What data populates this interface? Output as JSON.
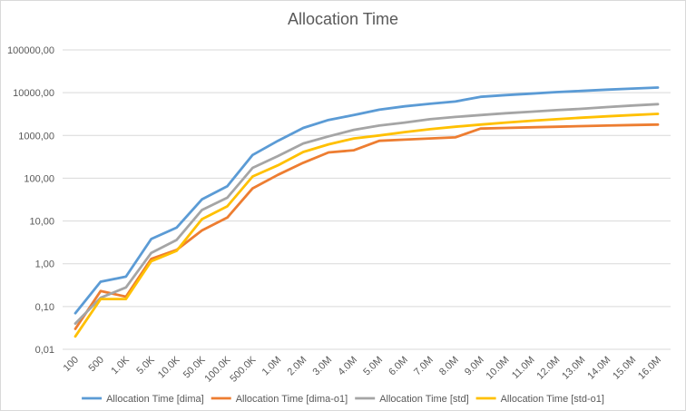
{
  "chart_data": {
    "type": "line",
    "title": "Allocation Time",
    "xlabel": "",
    "ylabel": "",
    "y_scale": "log",
    "ylim": [
      0.01,
      100000
    ],
    "y_ticks": [
      {
        "value": 0.01,
        "label": "0,01"
      },
      {
        "value": 0.1,
        "label": "0,10"
      },
      {
        "value": 1,
        "label": "1,00"
      },
      {
        "value": 10,
        "label": "10,00"
      },
      {
        "value": 100,
        "label": "100,00"
      },
      {
        "value": 1000,
        "label": "1000,00"
      },
      {
        "value": 10000,
        "label": "10000,00"
      },
      {
        "value": 100000,
        "label": "100000,00"
      }
    ],
    "grid": "horizontal",
    "legend_position": "bottom",
    "categories": [
      "100",
      "500",
      "1.0K",
      "5.0K",
      "10.0K",
      "50.0K",
      "100.0K",
      "500.0K",
      "1.0M",
      "2.0M",
      "3.0M",
      "4.0M",
      "5.0M",
      "6.0M",
      "7.0M",
      "8.0M",
      "9.0M",
      "10.0M",
      "11.0M",
      "12.0M",
      "13.0M",
      "14.0M",
      "15.0M",
      "16.0M"
    ],
    "series": [
      {
        "name": "Allocation Time [dima]",
        "color": "#5b9bd5",
        "values": [
          0.07,
          0.38,
          0.5,
          3.8,
          7,
          32,
          65,
          350,
          750,
          1500,
          2300,
          3000,
          4000,
          4800,
          5500,
          6200,
          8000,
          8800,
          9500,
          10300,
          11000,
          11800,
          12500,
          13200
        ]
      },
      {
        "name": "Allocation Time [dima-o1]",
        "color": "#ed7d31",
        "values": [
          0.03,
          0.23,
          0.17,
          1.3,
          2.1,
          6,
          12,
          58,
          120,
          230,
          400,
          450,
          750,
          800,
          850,
          900,
          1450,
          1500,
          1550,
          1600,
          1650,
          1700,
          1750,
          1800
        ]
      },
      {
        "name": "Allocation Time [std]",
        "color": "#a5a5a5",
        "values": [
          0.04,
          0.16,
          0.28,
          1.8,
          3.6,
          18,
          35,
          175,
          330,
          650,
          950,
          1350,
          1700,
          2000,
          2400,
          2700,
          3000,
          3300,
          3600,
          3900,
          4200,
          4600,
          5000,
          5400
        ]
      },
      {
        "name": "Allocation Time [std-o1]",
        "color": "#ffc000",
        "values": [
          0.02,
          0.15,
          0.15,
          1.15,
          2.0,
          11,
          22,
          110,
          200,
          410,
          620,
          850,
          1000,
          1200,
          1400,
          1600,
          1800,
          2000,
          2200,
          2400,
          2600,
          2800,
          3000,
          3200
        ]
      }
    ]
  }
}
